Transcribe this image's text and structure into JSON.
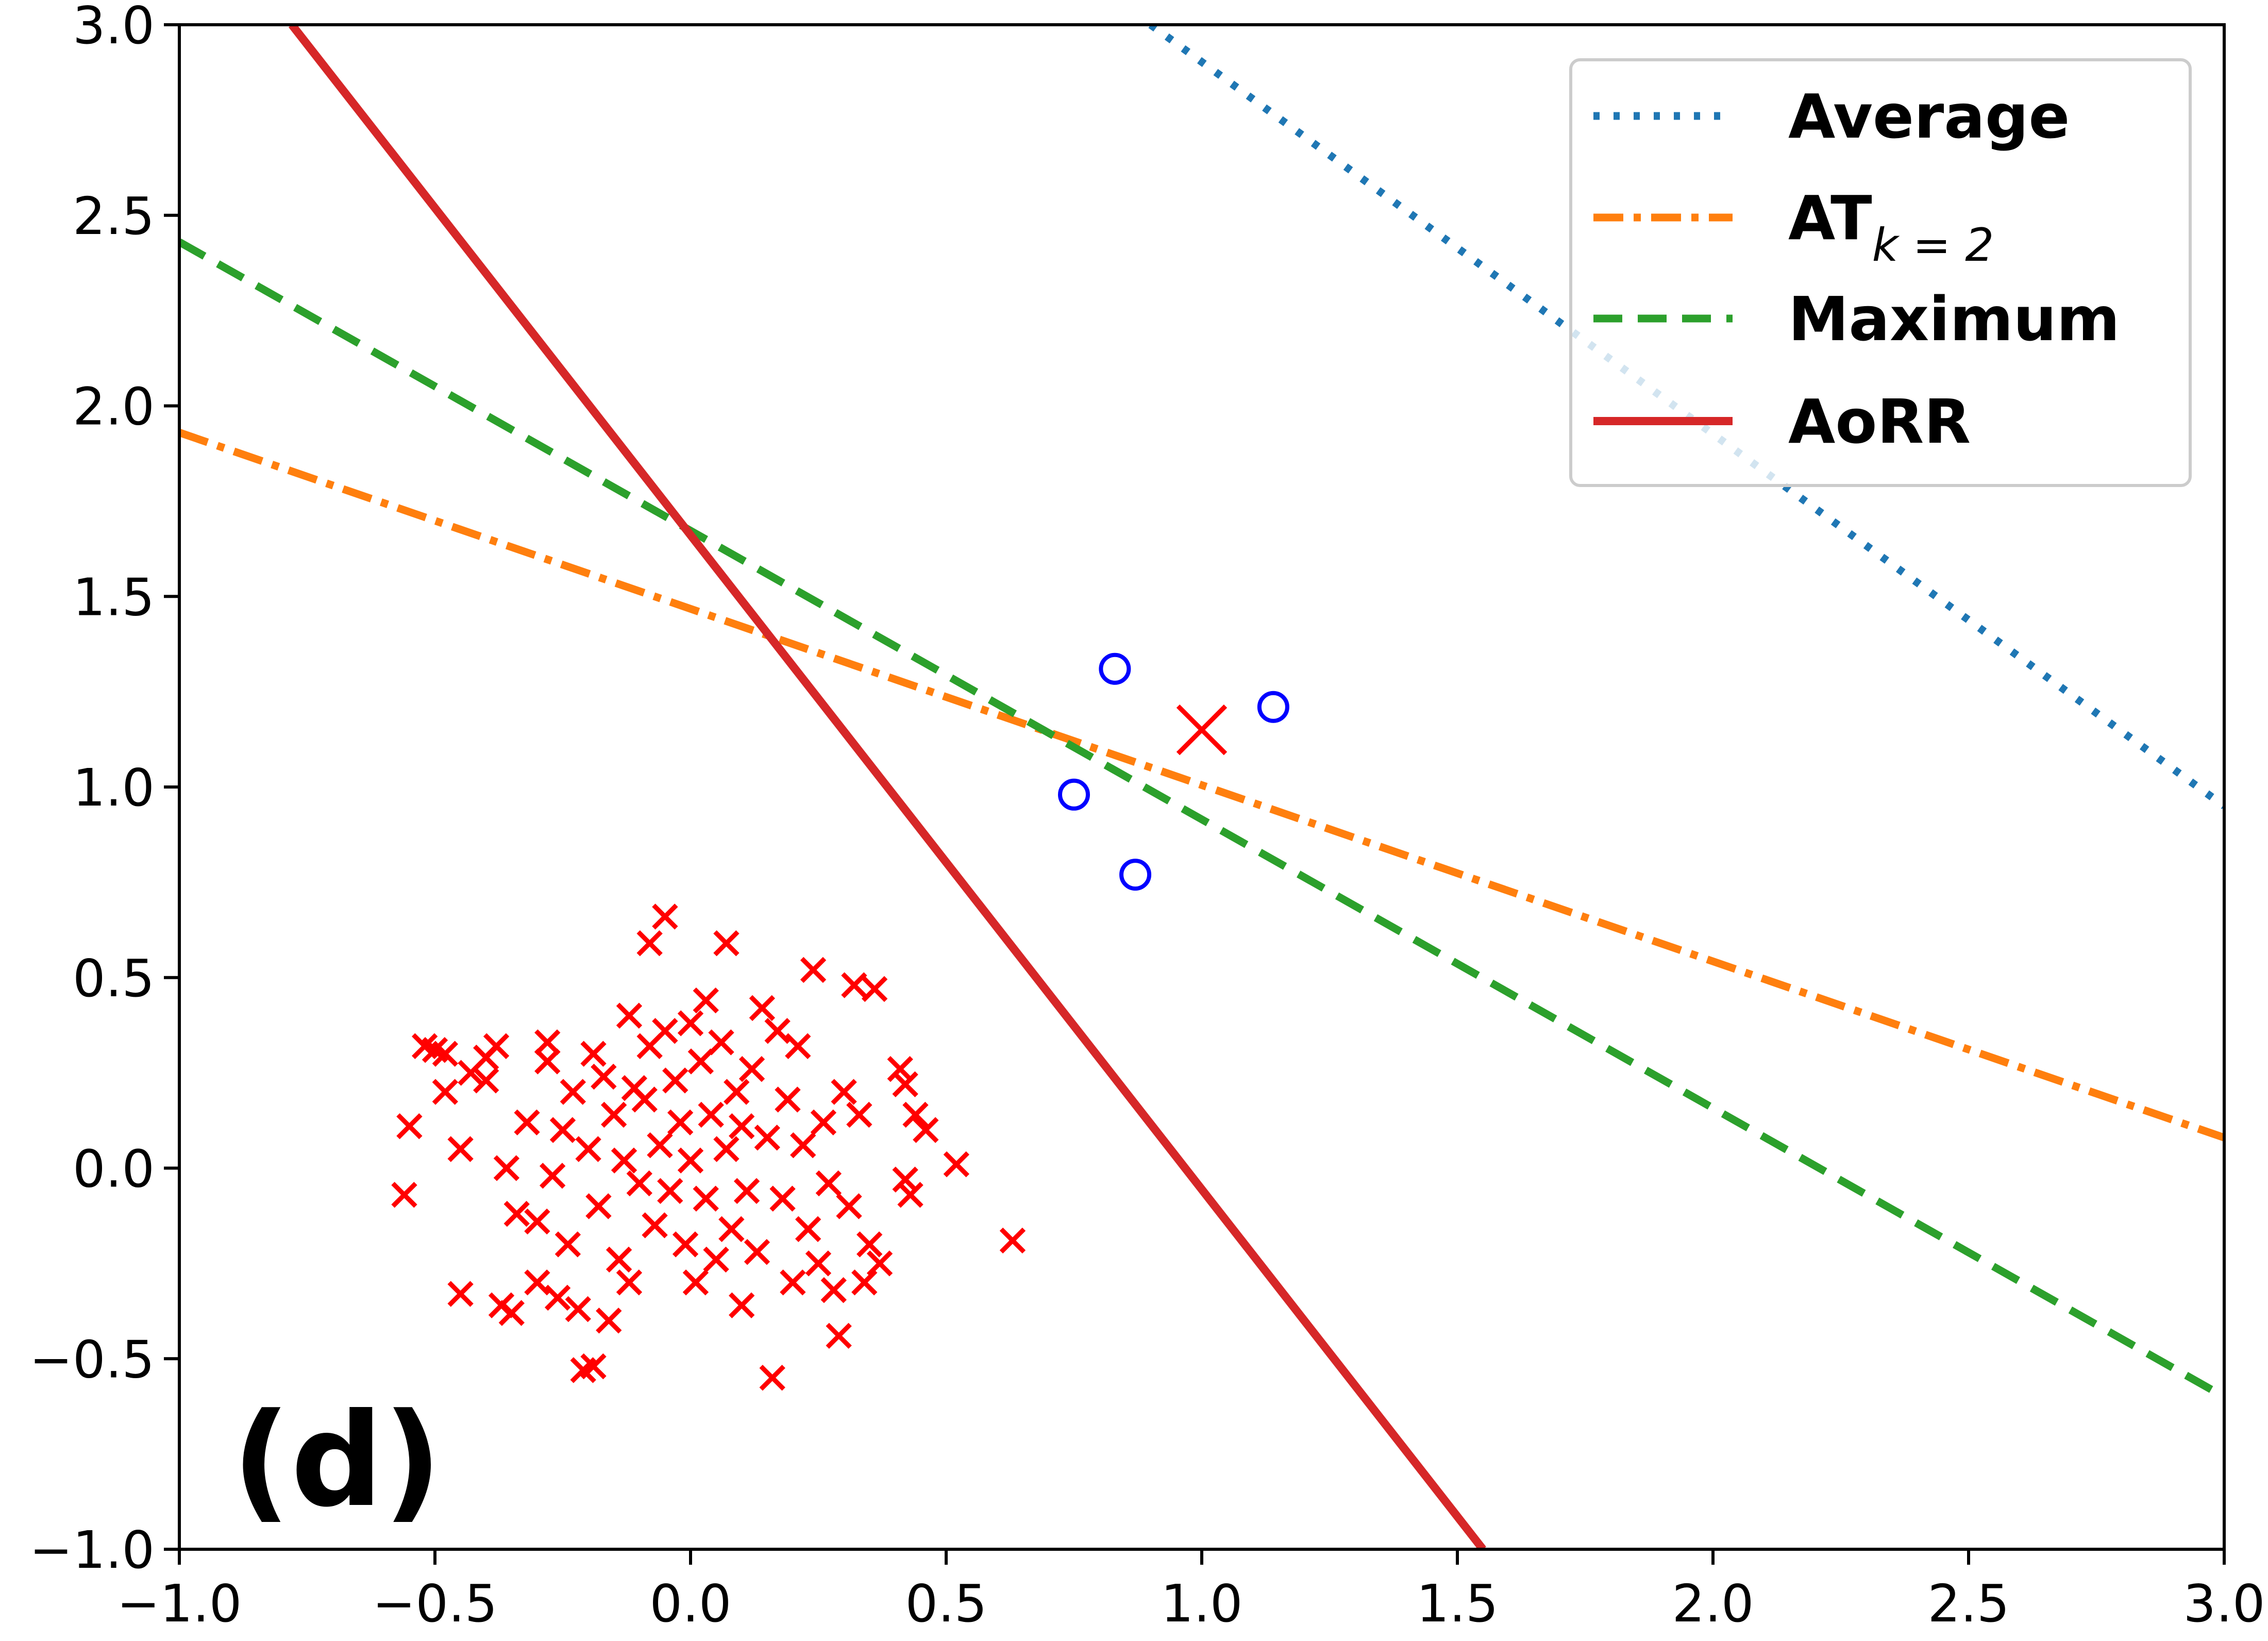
{
  "chart_data": {
    "type": "scatter",
    "title": "",
    "xlabel": "",
    "ylabel": "",
    "xlim": [
      -1.0,
      3.0
    ],
    "ylim": [
      -1.0,
      3.0
    ],
    "grid": false,
    "legend_position": "top-right",
    "panel_label": "(d)",
    "x_ticks": [
      "−1.0",
      "−0.5",
      "0.0",
      "0.5",
      "1.0",
      "1.5",
      "2.0",
      "2.5",
      "3.0"
    ],
    "y_ticks": [
      "−1.0",
      "−0.5",
      "0.0",
      "0.5",
      "1.0",
      "1.5",
      "2.0",
      "2.5",
      "3.0"
    ],
    "lines": [
      {
        "name": "Average",
        "label_main": "Average",
        "label_sub": "",
        "style": "dotted",
        "color": "#1f77b4",
        "points": [
          [
            0.9,
            3.0
          ],
          [
            3.0,
            0.95
          ]
        ]
      },
      {
        "name": "AT_{k=2}",
        "label_main": "AT",
        "label_sub": "k = 2",
        "style": "dashdot",
        "color": "#ff7f0e",
        "points": [
          [
            -1.0,
            1.93
          ],
          [
            3.0,
            0.08
          ]
        ]
      },
      {
        "name": "Maximum",
        "label_main": "Maximum",
        "label_sub": "",
        "style": "dashed",
        "color": "#2ca02c",
        "points": [
          [
            -1.0,
            2.43
          ],
          [
            3.0,
            -0.6
          ]
        ]
      },
      {
        "name": "AoRR",
        "label_main": "AoRR",
        "label_sub": "",
        "style": "solid",
        "color": "#d62728",
        "points": [
          [
            -0.78,
            3.0
          ],
          [
            1.55,
            -1.0
          ]
        ]
      }
    ],
    "positive_points": {
      "marker": "circle",
      "color": "#0000ff",
      "points": [
        [
          0.83,
          1.31
        ],
        [
          1.14,
          1.21
        ],
        [
          0.75,
          0.98
        ],
        [
          0.87,
          0.77
        ]
      ]
    },
    "outlier_point": {
      "marker": "x-large",
      "color": "#ff0000",
      "point": [
        1.0,
        1.15
      ]
    },
    "negative_cluster": {
      "marker": "x",
      "color": "#ff0000",
      "points": [
        [
          -0.55,
          0.11
        ],
        [
          -0.56,
          -0.07
        ],
        [
          -0.52,
          0.32
        ],
        [
          -0.5,
          0.31
        ],
        [
          -0.48,
          0.3
        ],
        [
          -0.48,
          0.2
        ],
        [
          -0.45,
          0.05
        ],
        [
          -0.45,
          -0.33
        ],
        [
          -0.43,
          0.25
        ],
        [
          -0.4,
          0.23
        ],
        [
          -0.4,
          0.29
        ],
        [
          -0.38,
          0.32
        ],
        [
          -0.37,
          -0.36
        ],
        [
          -0.36,
          0.0
        ],
        [
          -0.35,
          -0.38
        ],
        [
          -0.34,
          -0.12
        ],
        [
          -0.32,
          0.12
        ],
        [
          -0.3,
          -0.14
        ],
        [
          -0.3,
          -0.3
        ],
        [
          -0.28,
          0.33
        ],
        [
          -0.28,
          0.28
        ],
        [
          -0.27,
          -0.02
        ],
        [
          -0.26,
          -0.34
        ],
        [
          -0.25,
          0.1
        ],
        [
          -0.24,
          -0.2
        ],
        [
          -0.23,
          0.2
        ],
        [
          -0.22,
          -0.37
        ],
        [
          -0.21,
          -0.53
        ],
        [
          -0.2,
          0.05
        ],
        [
          -0.19,
          -0.52
        ],
        [
          -0.19,
          0.3
        ],
        [
          -0.18,
          -0.1
        ],
        [
          -0.17,
          0.24
        ],
        [
          -0.16,
          -0.4
        ],
        [
          -0.15,
          0.14
        ],
        [
          -0.14,
          -0.24
        ],
        [
          -0.13,
          0.02
        ],
        [
          -0.12,
          0.4
        ],
        [
          -0.12,
          -0.3
        ],
        [
          -0.11,
          0.21
        ],
        [
          -0.1,
          -0.04
        ],
        [
          -0.09,
          0.18
        ],
        [
          -0.08,
          0.32
        ],
        [
          -0.08,
          0.59
        ],
        [
          -0.07,
          -0.15
        ],
        [
          -0.06,
          0.06
        ],
        [
          -0.05,
          0.66
        ],
        [
          -0.05,
          0.36
        ],
        [
          -0.04,
          -0.06
        ],
        [
          -0.03,
          0.23
        ],
        [
          -0.02,
          0.12
        ],
        [
          -0.01,
          -0.2
        ],
        [
          0.0,
          0.02
        ],
        [
          0.0,
          0.38
        ],
        [
          0.01,
          -0.3
        ],
        [
          0.02,
          0.28
        ],
        [
          0.03,
          -0.08
        ],
        [
          0.03,
          0.44
        ],
        [
          0.04,
          0.14
        ],
        [
          0.05,
          -0.24
        ],
        [
          0.06,
          0.33
        ],
        [
          0.07,
          0.59
        ],
        [
          0.07,
          0.05
        ],
        [
          0.08,
          -0.16
        ],
        [
          0.09,
          0.2
        ],
        [
          0.1,
          -0.36
        ],
        [
          0.1,
          0.11
        ],
        [
          0.11,
          -0.06
        ],
        [
          0.12,
          0.26
        ],
        [
          0.13,
          -0.22
        ],
        [
          0.14,
          0.42
        ],
        [
          0.15,
          0.08
        ],
        [
          0.16,
          -0.55
        ],
        [
          0.17,
          0.36
        ],
        [
          0.18,
          -0.08
        ],
        [
          0.19,
          0.18
        ],
        [
          0.2,
          -0.3
        ],
        [
          0.21,
          0.32
        ],
        [
          0.22,
          0.06
        ],
        [
          0.23,
          -0.16
        ],
        [
          0.24,
          0.52
        ],
        [
          0.25,
          -0.25
        ],
        [
          0.26,
          0.12
        ],
        [
          0.27,
          -0.04
        ],
        [
          0.28,
          -0.32
        ],
        [
          0.29,
          -0.44
        ],
        [
          0.3,
          0.2
        ],
        [
          0.31,
          -0.1
        ],
        [
          0.32,
          0.48
        ],
        [
          0.33,
          0.14
        ],
        [
          0.34,
          -0.3
        ],
        [
          0.35,
          -0.2
        ],
        [
          0.36,
          0.47
        ],
        [
          0.37,
          -0.25
        ],
        [
          0.41,
          0.26
        ],
        [
          0.42,
          0.22
        ],
        [
          0.42,
          -0.03
        ],
        [
          0.43,
          -0.07
        ],
        [
          0.44,
          0.14
        ],
        [
          0.46,
          0.1
        ],
        [
          0.52,
          0.01
        ],
        [
          0.63,
          -0.19
        ]
      ]
    }
  }
}
